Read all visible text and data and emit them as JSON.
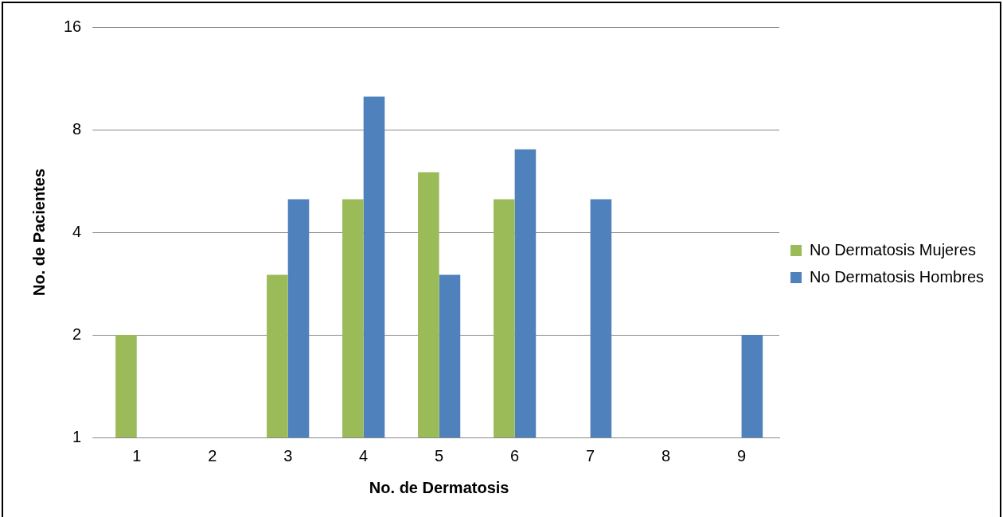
{
  "chart_data": {
    "type": "bar",
    "xlabel": "No. de Dermatosis",
    "ylabel": "No. de Pacientes",
    "categories": [
      "1",
      "2",
      "3",
      "4",
      "5",
      "6",
      "7",
      "8",
      "9"
    ],
    "series": [
      {
        "name": "No Dermatosis Mujeres",
        "color": "#9bbb59",
        "values": [
          2,
          null,
          3,
          5,
          6,
          5,
          null,
          null,
          null
        ]
      },
      {
        "name": "No Dermatosis Hombres",
        "color": "#4f81bd",
        "values": [
          null,
          null,
          5,
          10,
          3,
          7,
          5,
          null,
          2
        ]
      }
    ],
    "log": "y",
    "ylim": [
      1,
      16
    ],
    "yticks": [
      1,
      2,
      4,
      8,
      16
    ],
    "grid": "y",
    "legend": "right"
  }
}
